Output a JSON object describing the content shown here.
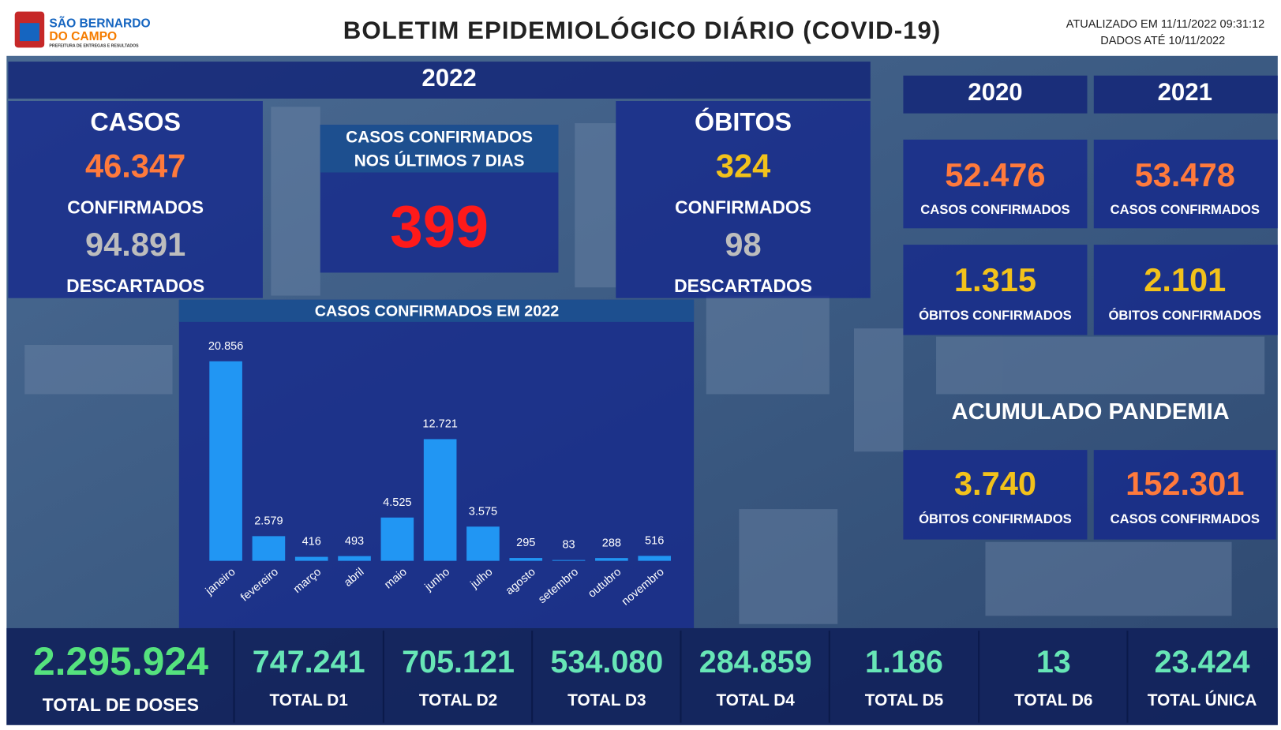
{
  "header": {
    "logo": {
      "line1": "SÃO BERNARDO",
      "line2": "DO CAMPO",
      "tagline": "PREFEITURA DE ENTREGAS E RESULTADOS"
    },
    "title": "BOLETIM EPIDEMIOLÓGICO DIÁRIO (COVID-19)",
    "updated": "ATUALIZADO EM 11/11/2022 09:31:12",
    "data_until": "DADOS ATÉ 10/11/2022"
  },
  "year_2022": {
    "label": "2022",
    "cases": {
      "title": "CASOS",
      "confirmed": "46.347",
      "confirmed_label": "CONFIRMADOS",
      "discarded": "94.891",
      "discarded_label": "DESCARTADOS"
    },
    "last_7_days": {
      "title_line1": "CASOS CONFIRMADOS",
      "title_line2": "NOS ÚLTIMOS 7 DIAS",
      "value": "399"
    },
    "deaths": {
      "title": "ÓBITOS",
      "confirmed": "324",
      "confirmed_label": "CONFIRMADOS",
      "discarded": "98",
      "discarded_label": "DESCARTADOS"
    }
  },
  "year_2020": {
    "label": "2020",
    "cases": "52.476",
    "cases_label": "CASOS CONFIRMADOS",
    "deaths": "1.315",
    "deaths_label": "ÓBITOS CONFIRMADOS"
  },
  "year_2021": {
    "label": "2021",
    "cases": "53.478",
    "cases_label": "CASOS CONFIRMADOS",
    "deaths": "2.101",
    "deaths_label": "ÓBITOS CONFIRMADOS"
  },
  "pandemic_total": {
    "title": "ACUMULADO PANDEMIA",
    "deaths": "3.740",
    "deaths_label": "ÓBITOS CONFIRMADOS",
    "cases": "152.301",
    "cases_label": "CASOS CONFIRMADOS"
  },
  "chart_data": {
    "type": "bar",
    "title": "CASOS CONFIRMADOS EM 2022",
    "categories": [
      "janeiro",
      "fevereiro",
      "março",
      "abril",
      "maio",
      "junho",
      "julho",
      "agosto",
      "setembro",
      "outubro",
      "novembro"
    ],
    "values": [
      20856,
      2579,
      416,
      493,
      4525,
      12721,
      3575,
      295,
      83,
      288,
      516
    ],
    "value_labels": [
      "20.856",
      "2.579",
      "416",
      "493",
      "4.525",
      "12.721",
      "3.575",
      "295",
      "83",
      "288",
      "516"
    ],
    "color": "#2196f3"
  },
  "doses": [
    {
      "value": "2.295.924",
      "label": "TOTAL DE DOSES"
    },
    {
      "value": "747.241",
      "label": "TOTAL D1"
    },
    {
      "value": "705.121",
      "label": "TOTAL D2"
    },
    {
      "value": "534.080",
      "label": "TOTAL D3"
    },
    {
      "value": "284.859",
      "label": "TOTAL D4"
    },
    {
      "value": "1.186",
      "label": "TOTAL D5"
    },
    {
      "value": "13",
      "label": "TOTAL D6"
    },
    {
      "value": "23.424",
      "label": "TOTAL ÚNICA"
    }
  ]
}
